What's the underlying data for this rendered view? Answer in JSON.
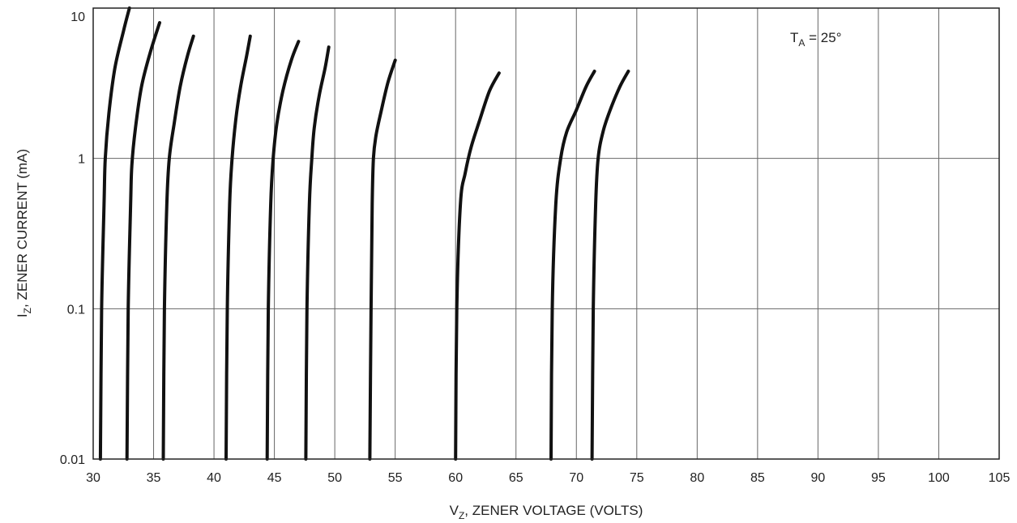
{
  "chart_data": {
    "type": "line",
    "title": "",
    "xlabel": {
      "main": "V",
      "sub": "Z",
      "rest": ", ZENER VOLTAGE (VOLTS)"
    },
    "ylabel": {
      "main": "I",
      "sub": "Z",
      "rest": ", ZENER CURRENT (mA)"
    },
    "annotation": {
      "main": "T",
      "sub": "A",
      "rest": " = 25°"
    },
    "xlim": [
      30,
      105
    ],
    "ylim": [
      0.01,
      10
    ],
    "y_scale": "log",
    "grid": true,
    "x_ticks": [
      30,
      35,
      40,
      45,
      50,
      55,
      60,
      65,
      70,
      75,
      80,
      85,
      90,
      95,
      100,
      105
    ],
    "x_tick_labels": [
      "30",
      "35",
      "40",
      "45",
      "50",
      "55",
      "60",
      "65",
      "70",
      "75",
      "80",
      "85",
      "90",
      "95",
      "100",
      "105"
    ],
    "y_ticks": [
      0.01,
      0.1,
      1,
      10
    ],
    "y_tick_labels": [
      "0.01",
      "0.1",
      "1",
      "10"
    ],
    "line_color": "#111111",
    "grid_color": "#666666",
    "series": [
      {
        "x": [
          30.6,
          30.7,
          30.9,
          31.0,
          31.3,
          31.8,
          32.5,
          33.0
        ],
        "y": [
          0.01,
          0.1,
          0.5,
          1,
          2,
          4,
          7,
          10
        ]
      },
      {
        "x": [
          32.8,
          32.9,
          33.1,
          33.2,
          33.5,
          34.0,
          34.7,
          35.5
        ],
        "y": [
          0.01,
          0.1,
          0.5,
          0.9,
          1.6,
          3,
          5,
          8
        ]
      },
      {
        "x": [
          35.8,
          35.9,
          36.1,
          36.3,
          36.7,
          37.2,
          37.8,
          38.3
        ],
        "y": [
          0.01,
          0.1,
          0.5,
          1,
          1.7,
          3,
          4.8,
          6.5
        ]
      },
      {
        "x": [
          41.0,
          41.1,
          41.3,
          41.5,
          41.8,
          42.2,
          42.7,
          43.0
        ],
        "y": [
          0.01,
          0.1,
          0.5,
          1,
          1.8,
          3,
          4.8,
          6.5
        ]
      },
      {
        "x": [
          44.4,
          44.5,
          44.7,
          44.9,
          45.2,
          45.7,
          46.4,
          47.0
        ],
        "y": [
          0.01,
          0.1,
          0.5,
          1,
          1.7,
          2.8,
          4.5,
          6
        ]
      },
      {
        "x": [
          47.6,
          47.7,
          47.9,
          48.1,
          48.3,
          48.7,
          49.2,
          49.5
        ],
        "y": [
          0.01,
          0.1,
          0.5,
          1,
          1.6,
          2.6,
          4,
          5.5
        ]
      },
      {
        "x": [
          52.9,
          53.0,
          53.1,
          53.2,
          53.4,
          53.8,
          54.4,
          55.0
        ],
        "y": [
          0.01,
          0.1,
          0.5,
          1,
          1.4,
          2,
          3.2,
          4.5
        ]
      },
      {
        "x": [
          60.0,
          60.1,
          60.4,
          60.8,
          61.3,
          62.0,
          62.8,
          63.6
        ],
        "y": [
          0.01,
          0.1,
          0.5,
          0.8,
          1.2,
          1.8,
          2.8,
          3.7
        ]
      },
      {
        "x": [
          67.9,
          68.0,
          68.3,
          68.7,
          69.2,
          70.0,
          70.8,
          71.5
        ],
        "y": [
          0.01,
          0.1,
          0.5,
          1,
          1.5,
          2.1,
          3,
          3.8
        ]
      },
      {
        "x": [
          71.3,
          71.4,
          71.6,
          71.8,
          72.2,
          72.8,
          73.6,
          74.3
        ],
        "y": [
          0.01,
          0.1,
          0.5,
          1,
          1.5,
          2.1,
          3,
          3.8
        ]
      }
    ]
  }
}
